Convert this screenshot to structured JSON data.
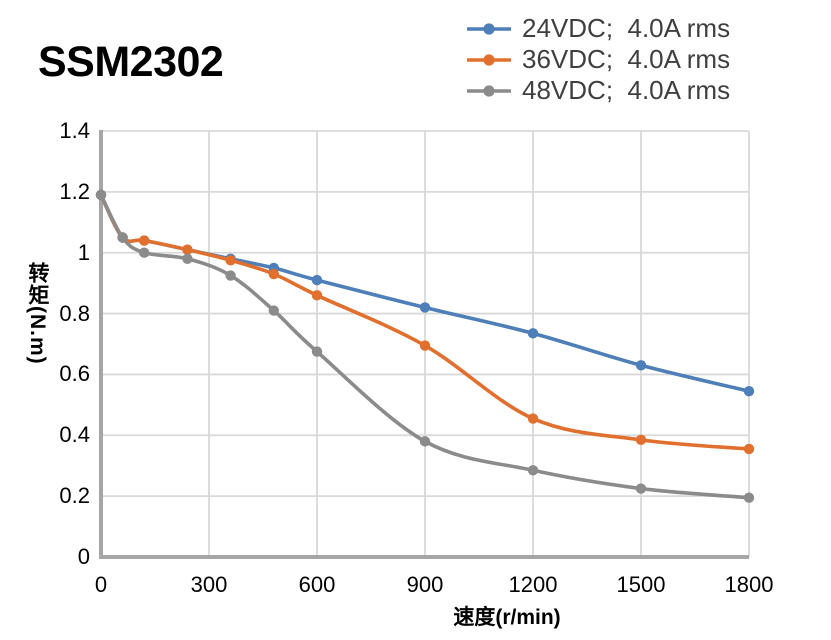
{
  "title": "SSM2302",
  "legend": {
    "items": [
      {
        "label": "24VDC;  4.0A rms",
        "color": "#4E7FB8"
      },
      {
        "label": "36VDC;  4.0A rms",
        "color": "#E1702F"
      },
      {
        "label": "48VDC;  4.0A rms",
        "color": "#8B8B8B"
      }
    ]
  },
  "chart_data": {
    "type": "line",
    "title": "SSM2302",
    "xlabel": "速度(r/min)",
    "ylabel": "转矩(N.m)",
    "x": [
      0,
      60,
      120,
      240,
      360,
      480,
      600,
      900,
      1200,
      1500,
      1800
    ],
    "series": [
      {
        "name": "24VDC;  4.0A rms",
        "color": "#4E7FB8",
        "values": [
          1.19,
          1.05,
          1.04,
          1.01,
          0.98,
          0.95,
          0.91,
          0.82,
          0.735,
          0.63,
          0.545
        ]
      },
      {
        "name": "36VDC;  4.0A rms",
        "color": "#E1702F",
        "values": [
          1.19,
          1.05,
          1.04,
          1.01,
          0.975,
          0.93,
          0.86,
          0.695,
          0.455,
          0.385,
          0.355
        ]
      },
      {
        "name": "48VDC;  4.0A rms",
        "color": "#8B8B8B",
        "values": [
          1.19,
          1.05,
          1.0,
          0.98,
          0.925,
          0.81,
          0.675,
          0.38,
          0.285,
          0.225,
          0.195
        ]
      }
    ],
    "x_ticks": [
      "0",
      "300",
      "600",
      "900",
      "1200",
      "1500",
      "1800"
    ],
    "y_ticks": [
      "1.4",
      "1.2",
      "1",
      "0.8",
      "0.6",
      "0.4",
      "0.2",
      "0"
    ],
    "xlim": [
      0,
      1800
    ],
    "ylim": [
      0,
      1.4
    ],
    "grid": true,
    "smooth": true,
    "marker": "circle",
    "legend_position": "top-right"
  },
  "colors": {
    "background": "#FFFFFF",
    "grid": "#D9D9D9",
    "axis": "#A6A6A6",
    "tick_text": "#000000",
    "legend_text": "#3F3F3F",
    "title_text": "#000000"
  }
}
